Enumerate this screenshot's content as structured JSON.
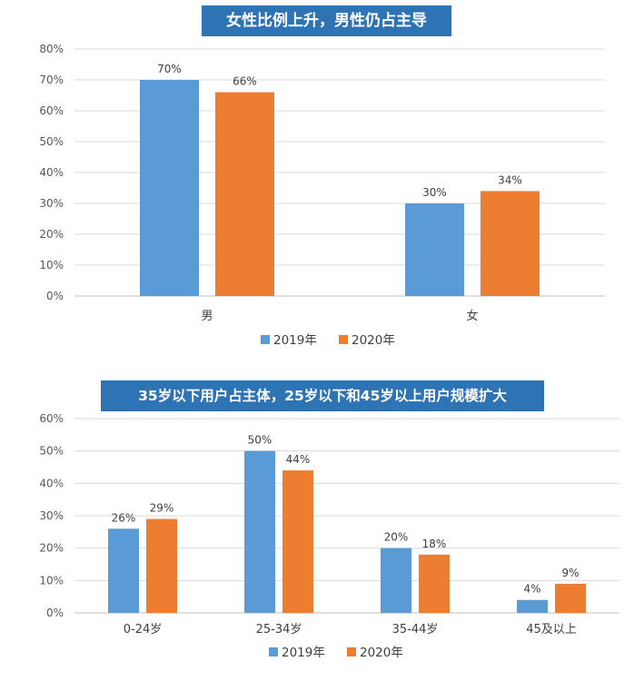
{
  "colors": {
    "series_2019": "#5b9bd5",
    "series_2020": "#ed7d31",
    "title_bg": "#2e74b5",
    "grid": "#d9d9d9"
  },
  "chart_data": [
    {
      "type": "bar",
      "title": "女性比例上升，男性仍占主导",
      "categories": [
        "男",
        "女"
      ],
      "series": [
        {
          "name": "2019年",
          "values": [
            70,
            30
          ]
        },
        {
          "name": "2020年",
          "values": [
            66,
            34
          ]
        }
      ],
      "value_labels": [
        [
          "70%",
          "30%"
        ],
        [
          "66%",
          "34%"
        ]
      ],
      "yticks": [
        "0%",
        "10%",
        "20%",
        "30%",
        "40%",
        "50%",
        "60%",
        "70%",
        "80%"
      ],
      "ylim": [
        0,
        80
      ],
      "grid": true,
      "legend": "bottom"
    },
    {
      "type": "bar",
      "title": "35岁以下用户占主体，25岁以下和45岁以上用户规模扩大",
      "categories": [
        "0-24岁",
        "25-34岁",
        "35-44岁",
        "45及以上"
      ],
      "series": [
        {
          "name": "2019年",
          "values": [
            26,
            50,
            20,
            4
          ]
        },
        {
          "name": "2020年",
          "values": [
            29,
            44,
            18,
            9
          ]
        }
      ],
      "value_labels": [
        [
          "26%",
          "50%",
          "20%",
          "4%"
        ],
        [
          "29%",
          "44%",
          "18%",
          "9%"
        ]
      ],
      "yticks": [
        "0%",
        "10%",
        "20%",
        "30%",
        "40%",
        "50%",
        "60%"
      ],
      "ylim": [
        0,
        60
      ],
      "grid": true,
      "legend": "bottom"
    }
  ]
}
